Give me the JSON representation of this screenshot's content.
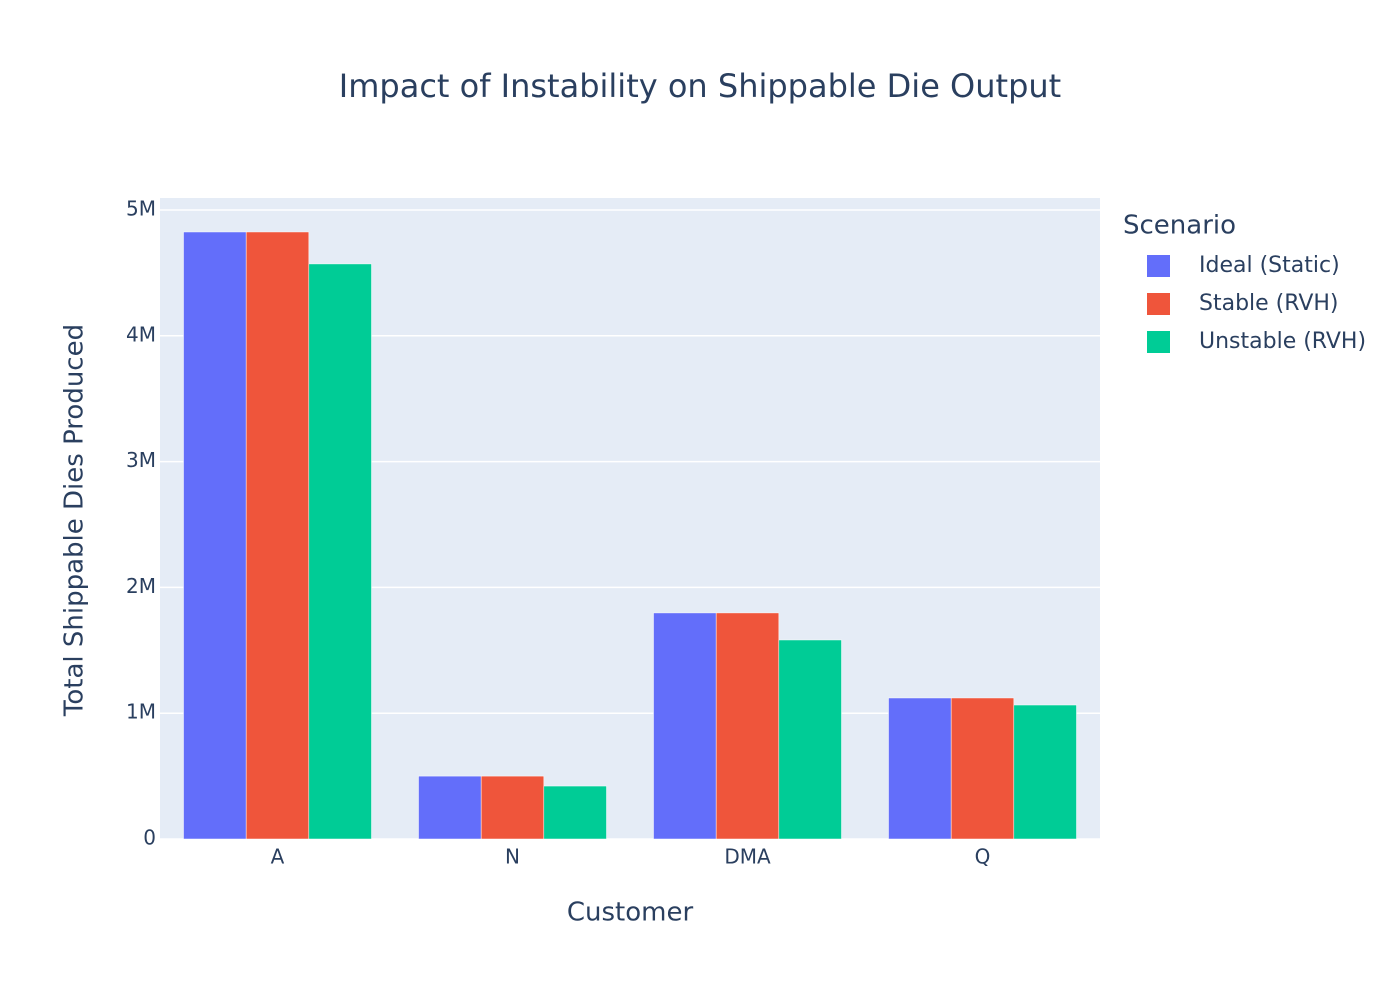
{
  "chart_data": {
    "type": "bar",
    "title": "Impact of Instability on Shippable Die Output",
    "x_label": "Customer",
    "y_label": "Total Shippable Dies Produced",
    "legend_title": "Scenario",
    "legend_position": "right",
    "categories": [
      "A",
      "N",
      "DMA",
      "Q"
    ],
    "series": [
      {
        "name": "Ideal (Static)",
        "color": "#636efa",
        "values": [
          4825000,
          500000,
          1797000,
          1121000
        ]
      },
      {
        "name": "Stable (RVH)",
        "color": "#ef553b",
        "values": [
          4825000,
          500000,
          1797000,
          1121000
        ]
      },
      {
        "name": "Unstable (RVH)",
        "color": "#00cc96",
        "values": [
          4571000,
          421000,
          1582000,
          1065000
        ]
      }
    ],
    "ylim": [
      0,
      5095000
    ],
    "yticks": [
      0,
      {
        "value": 1000000,
        "label": "1M"
      },
      {
        "value": 2000000,
        "label": "2M"
      },
      {
        "value": 3000000,
        "label": "3M"
      },
      {
        "value": 4000000,
        "label": "4M"
      },
      {
        "value": 5000000,
        "label": "5M"
      }
    ],
    "grid": true
  }
}
